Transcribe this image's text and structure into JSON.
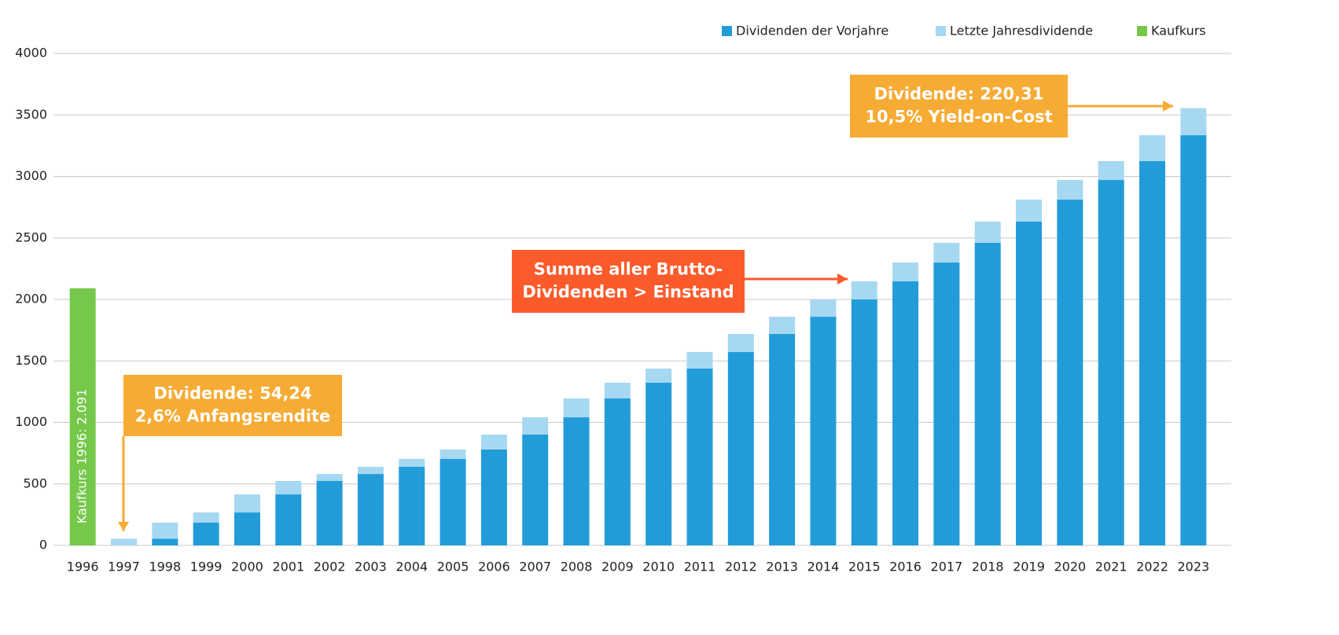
{
  "chart_data": {
    "type": "stacked_bar",
    "categories": [
      "1996",
      "1997",
      "1998",
      "1999",
      "2000",
      "2001",
      "2002",
      "2003",
      "2004",
      "2005",
      "2006",
      "2007",
      "2008",
      "2009",
      "2010",
      "2011",
      "2012",
      "2013",
      "2014",
      "2015",
      "2016",
      "2017",
      "2018",
      "2019",
      "2020",
      "2021",
      "2022",
      "2023"
    ],
    "series": [
      {
        "name": "Dividenden der Vorjahre",
        "color": "#229cd8",
        "stack": "base",
        "values": [
          null,
          0,
          54,
          185,
          268,
          415,
          524,
          581,
          639,
          703,
          780,
          901,
          1042,
          1195,
          1323,
          1438,
          1572,
          1719,
          1859,
          2000,
          2147,
          2300,
          2460,
          2633,
          2812,
          2971,
          3125,
          3335
        ]
      },
      {
        "name": "Letzte Jahresdividende",
        "color": "#a6d8f2",
        "stack": "top",
        "values": [
          null,
          54.24,
          131,
          83,
          147,
          109,
          57,
          58,
          64,
          77,
          121,
          141,
          153,
          128,
          115,
          134,
          147,
          140,
          141,
          147,
          153,
          160,
          173,
          179,
          159,
          154,
          210,
          220.31
        ]
      },
      {
        "name": "Kaufkurs",
        "color": "#76c84b",
        "stack": "base",
        "values": [
          2091,
          null,
          null,
          null,
          null,
          null,
          null,
          null,
          null,
          null,
          null,
          null,
          null,
          null,
          null,
          null,
          null,
          null,
          null,
          null,
          null,
          null,
          null,
          null,
          null,
          null,
          null,
          null
        ],
        "value_labels": [
          "Kaufkurs 1996: 2.091",
          null,
          null,
          null,
          null,
          null,
          null,
          null,
          null,
          null,
          null,
          null,
          null,
          null,
          null,
          null,
          null,
          null,
          null,
          null,
          null,
          null,
          null,
          null,
          null,
          null,
          null,
          null
        ]
      }
    ],
    "ylim": [
      0,
      4000
    ],
    "yticks": [
      0,
      500,
      1000,
      1500,
      2000,
      2500,
      3000,
      3500,
      4000
    ],
    "grid": true,
    "legend": "top-right",
    "annotations": [
      {
        "lines": [
          "Dividende: 54,24",
          "2,6% Anfangsrendite"
        ],
        "color": "#f6ab34"
      },
      {
        "lines": [
          "Summe aller Brutto-",
          "Dividenden > Einstand"
        ],
        "color": "#fb5a2a"
      },
      {
        "lines": [
          "Dividende: 220,31",
          "10,5% Yield-on-Cost"
        ],
        "color": "#f6ab34"
      }
    ]
  }
}
